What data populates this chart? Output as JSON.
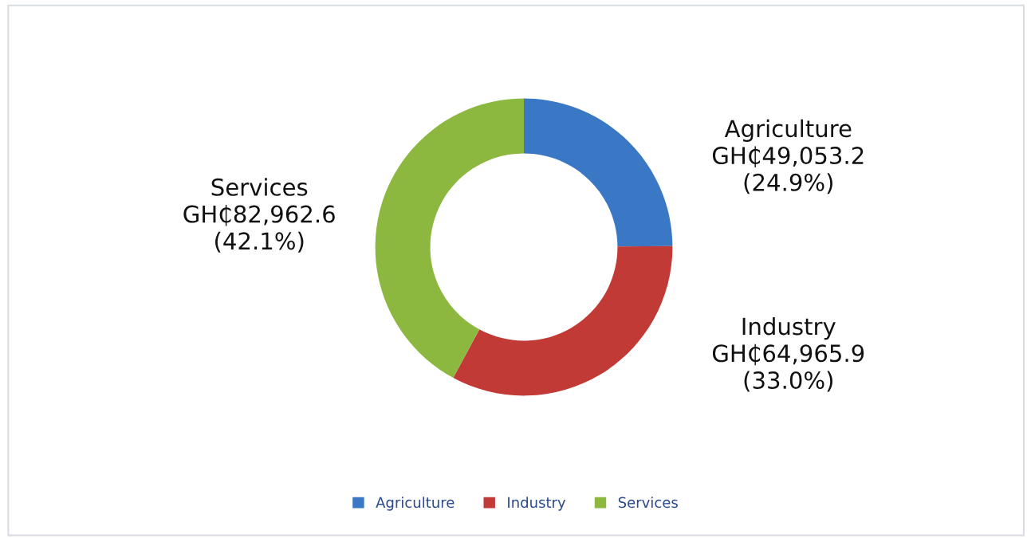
{
  "chart_data": {
    "type": "donut",
    "categories": [
      "Agriculture",
      "Industry",
      "Services"
    ],
    "values": [
      49053.2,
      64965.9,
      82962.6
    ],
    "colors": [
      "#3a78c6",
      "#c23a36",
      "#8cb840"
    ],
    "value_labels": [
      "GH₵49,053.2\n(24.9%)",
      "GH₵64,965.9\n(33.0%)",
      "GH₵82,962.6\n(42.1%)"
    ],
    "legend": "bottom"
  }
}
